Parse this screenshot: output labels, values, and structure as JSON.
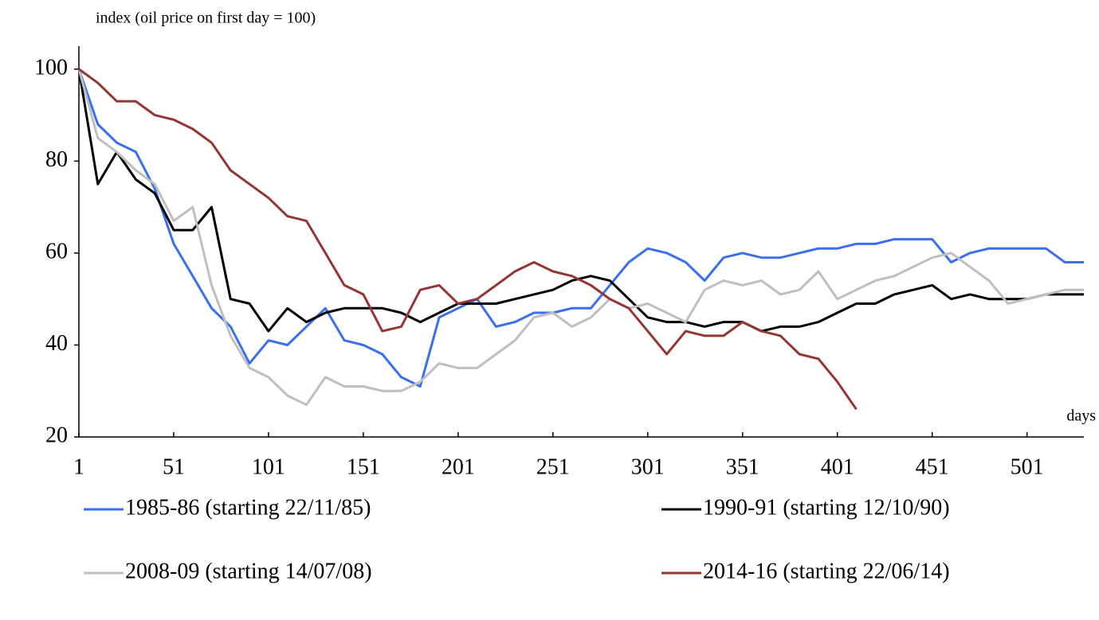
{
  "chart_data": {
    "type": "line",
    "y_label": "index (oil price on first day = 100)",
    "x_label": "days",
    "x": [
      1,
      11,
      21,
      31,
      41,
      51,
      61,
      71,
      81,
      91,
      101,
      111,
      121,
      131,
      141,
      151,
      161,
      171,
      181,
      191,
      201,
      211,
      221,
      231,
      241,
      251,
      261,
      271,
      281,
      291,
      301,
      311,
      321,
      331,
      341,
      351,
      361,
      371,
      381,
      391,
      401,
      411,
      421,
      431,
      441,
      451,
      461,
      471,
      481,
      491,
      501,
      511,
      521,
      531
    ],
    "series": [
      {
        "name": "1985-86 (starting 22/11/85)",
        "color": "#3a6ff0",
        "values": [
          100,
          88,
          84,
          82,
          74,
          62,
          55,
          48,
          44,
          36,
          41,
          40,
          44,
          48,
          41,
          40,
          38,
          33,
          31,
          46,
          48,
          50,
          44,
          45,
          47,
          47,
          48,
          48,
          53,
          58,
          61,
          60,
          58,
          54,
          59,
          60,
          59,
          59,
          60,
          61,
          61,
          62,
          62,
          63,
          63,
          63,
          58,
          60,
          61,
          61,
          61,
          61,
          58,
          58
        ]
      },
      {
        "name": "1990-91 (starting 12/10/90)",
        "color": "#000000",
        "values": [
          100,
          75,
          82,
          76,
          73,
          65,
          65,
          70,
          50,
          49,
          43,
          48,
          45,
          47,
          48,
          48,
          48,
          47,
          45,
          47,
          49,
          49,
          49,
          50,
          51,
          52,
          54,
          55,
          54,
          50,
          46,
          45,
          45,
          44,
          45,
          45,
          43,
          44,
          44,
          45,
          47,
          49,
          49,
          51,
          52,
          53,
          50,
          51,
          50,
          50,
          50,
          51,
          51,
          51
        ]
      },
      {
        "name": "2008-09 (starting 14/07/08)",
        "color": "#bfbfbf",
        "values": [
          100,
          85,
          82,
          78,
          75,
          67,
          70,
          53,
          42,
          35,
          33,
          29,
          27,
          33,
          31,
          31,
          30,
          30,
          32,
          36,
          35,
          35,
          38,
          41,
          46,
          47,
          44,
          46,
          50,
          48,
          49,
          47,
          45,
          52,
          54,
          53,
          54,
          51,
          52,
          56,
          50,
          52,
          54,
          55,
          57,
          59,
          60,
          57,
          54,
          49,
          50,
          51,
          52,
          52
        ]
      },
      {
        "name": "2014-16 (starting 22/06/14)",
        "color": "#943634",
        "values": [
          100,
          97,
          93,
          93,
          90,
          89,
          87,
          84,
          78,
          75,
          72,
          68,
          67,
          60,
          53,
          51,
          43,
          44,
          52,
          53,
          49,
          50,
          53,
          56,
          58,
          56,
          55,
          53,
          50,
          48,
          43,
          38,
          43,
          42,
          42,
          45,
          43,
          42,
          38,
          37,
          32,
          26,
          null,
          null,
          null,
          null,
          null,
          null,
          null,
          null,
          null,
          null,
          null,
          null
        ]
      }
    ],
    "xlim": [
      1,
      531
    ],
    "ylim": [
      20,
      105
    ],
    "xticks": [
      1,
      51,
      101,
      151,
      201,
      251,
      301,
      351,
      401,
      451,
      501
    ],
    "yticks": [
      20,
      40,
      60,
      80,
      100
    ]
  }
}
